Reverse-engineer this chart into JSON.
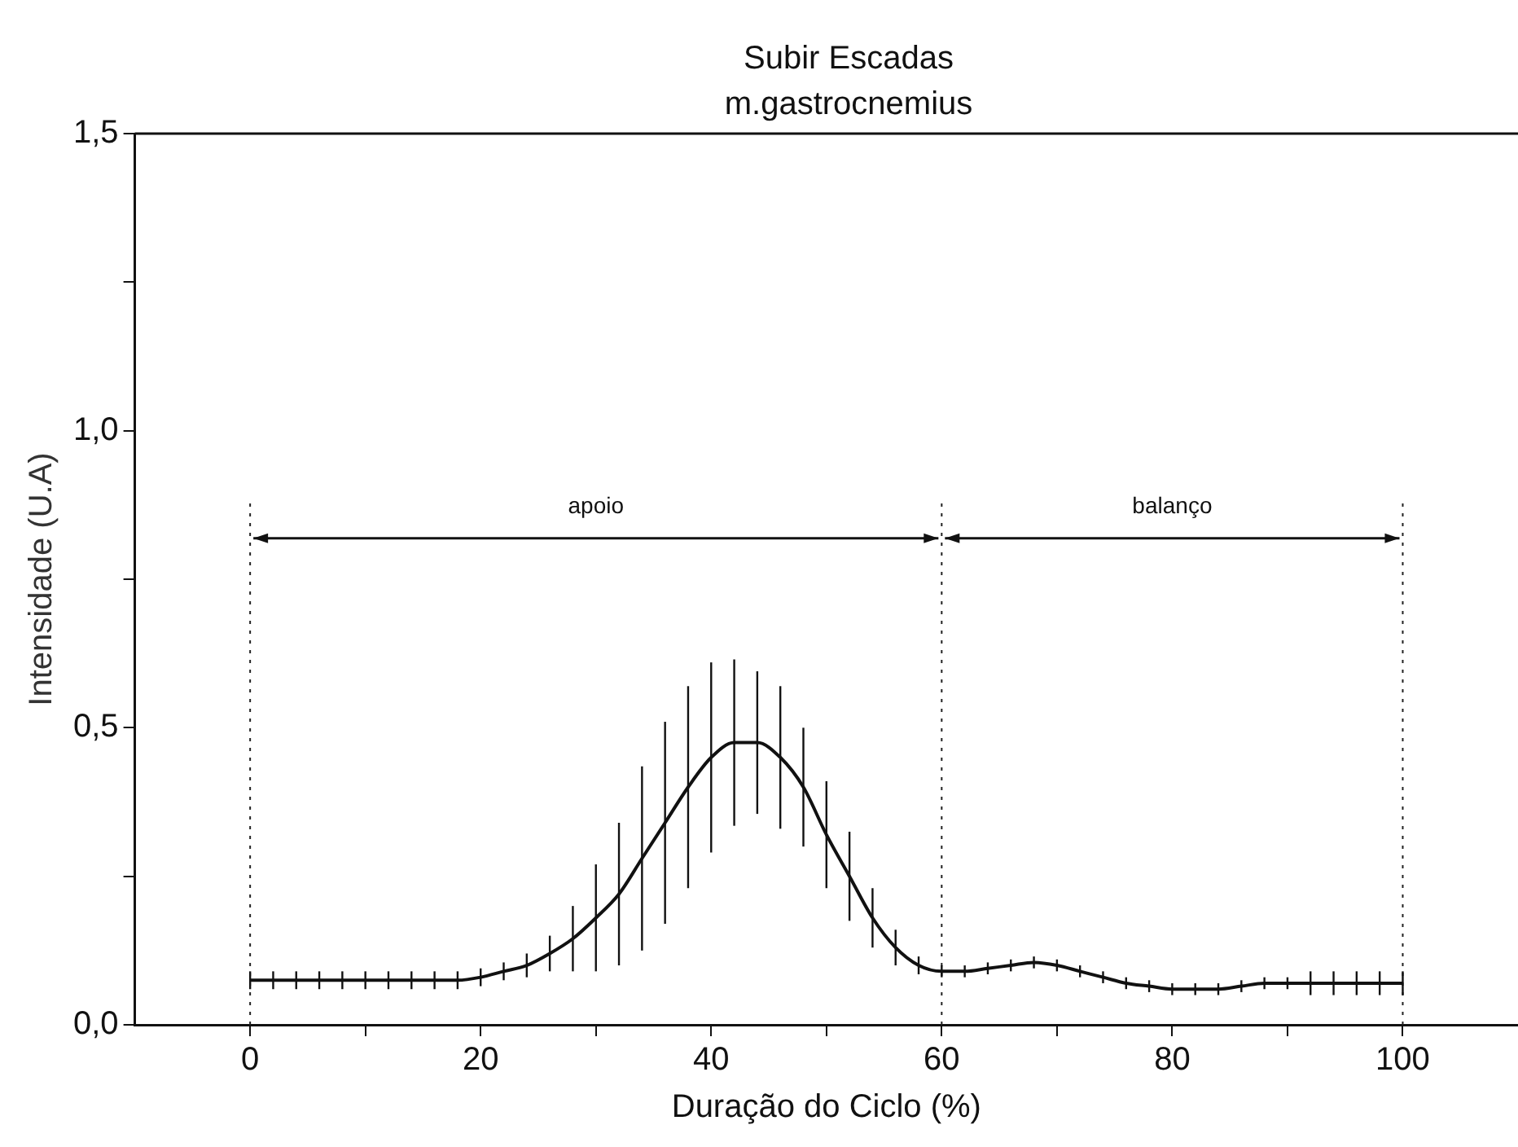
{
  "chart_data": {
    "type": "line",
    "title": "Subir Escadas",
    "subtitle": "m.gastrocnemius",
    "xlabel": "Duração do Ciclo (%)",
    "ylabel": "Intensidade (U.A)",
    "x": [
      0,
      2,
      4,
      6,
      8,
      10,
      12,
      14,
      16,
      18,
      20,
      22,
      24,
      26,
      28,
      30,
      32,
      34,
      36,
      38,
      40,
      42,
      44,
      46,
      48,
      50,
      52,
      54,
      56,
      58,
      60,
      62,
      64,
      66,
      68,
      70,
      72,
      74,
      76,
      78,
      80,
      82,
      84,
      86,
      88,
      90,
      92,
      94,
      96,
      98,
      100
    ],
    "series": [
      {
        "color": "#111111",
        "values": [
          0.075,
          0.075,
          0.075,
          0.075,
          0.075,
          0.075,
          0.075,
          0.075,
          0.075,
          0.075,
          0.08,
          0.09,
          0.1,
          0.12,
          0.145,
          0.18,
          0.22,
          0.28,
          0.34,
          0.4,
          0.45,
          0.475,
          0.475,
          0.45,
          0.4,
          0.32,
          0.25,
          0.18,
          0.13,
          0.1,
          0.09,
          0.09,
          0.095,
          0.1,
          0.105,
          0.1,
          0.09,
          0.08,
          0.07,
          0.065,
          0.06,
          0.06,
          0.06,
          0.065,
          0.07,
          0.07,
          0.07,
          0.07,
          0.07,
          0.07,
          0.07
        ],
        "errors": [
          0.015,
          0.015,
          0.015,
          0.015,
          0.015,
          0.015,
          0.015,
          0.015,
          0.015,
          0.015,
          0.015,
          0.015,
          0.02,
          0.03,
          0.055,
          0.09,
          0.12,
          0.155,
          0.17,
          0.17,
          0.16,
          0.14,
          0.12,
          0.12,
          0.1,
          0.09,
          0.075,
          0.05,
          0.03,
          0.015,
          0.01,
          0.01,
          0.01,
          0.01,
          0.01,
          0.01,
          0.01,
          0.01,
          0.01,
          0.01,
          0.01,
          0.01,
          0.01,
          0.01,
          0.01,
          0.01,
          0.02,
          0.02,
          0.02,
          0.02,
          0.02
        ]
      }
    ],
    "xlim": [
      -10,
      110
    ],
    "xticks": [
      0,
      {
        "value": 10,
        "label": null
      },
      20,
      {
        "value": 30,
        "label": null
      },
      40,
      {
        "value": 50,
        "label": null
      },
      60,
      {
        "value": 70,
        "label": null
      },
      80,
      {
        "value": 90,
        "label": null
      },
      100
    ],
    "ylim": [
      0,
      1.5
    ],
    "yticks": [
      {
        "value": 0,
        "label": "0,0"
      },
      {
        "value": 0.25,
        "label": null
      },
      {
        "value": 0.5,
        "label": "0,5"
      },
      {
        "value": 0.75,
        "label": null
      },
      {
        "value": 1,
        "label": "1,0"
      },
      {
        "value": 1.25,
        "label": null
      },
      {
        "value": 1.5,
        "label": "1,5"
      }
    ],
    "ref_lines": [
      {
        "axis": "x",
        "value": 0,
        "line_style": "dotted"
      },
      {
        "axis": "x",
        "value": 60,
        "line_style": "dotted"
      },
      {
        "axis": "x",
        "value": 100,
        "line_style": "dotted"
      }
    ],
    "annotations": [
      "apoio",
      "balanço"
    ],
    "grid": false,
    "legend": false,
    "marker": "none",
    "line_style": "solid"
  }
}
